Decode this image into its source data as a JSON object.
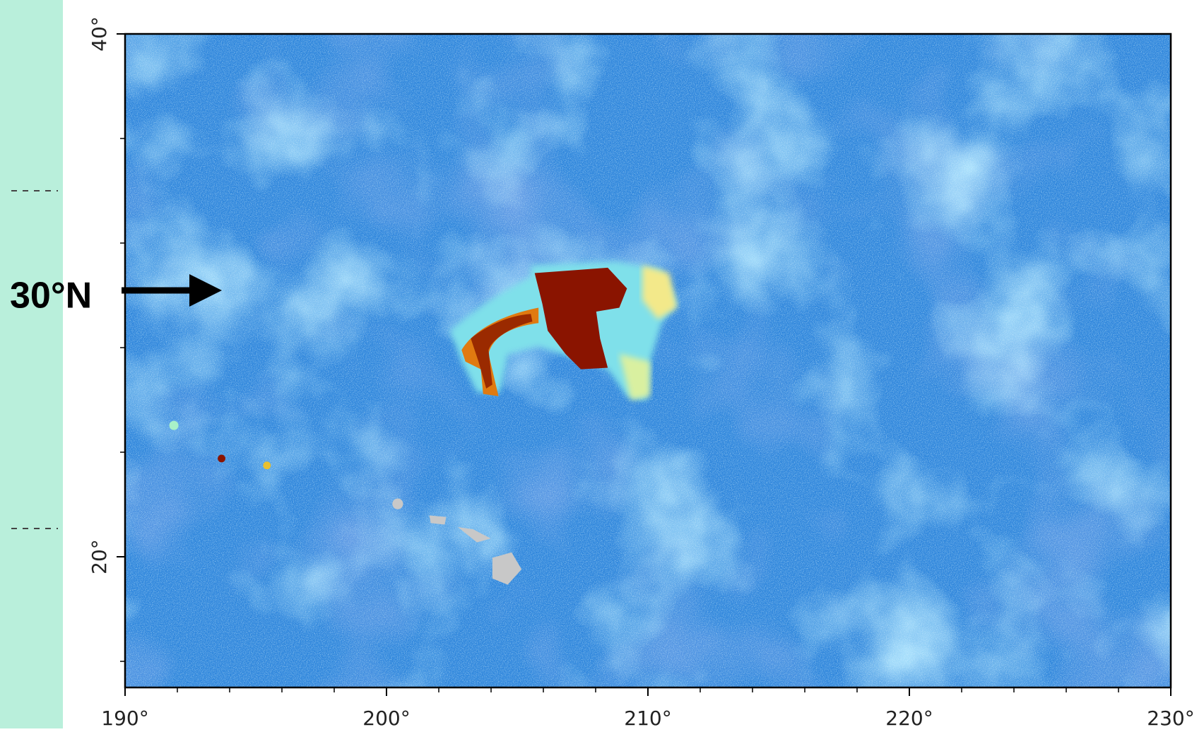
{
  "map": {
    "lon_range": [
      190,
      230
    ],
    "lat_range": [
      15,
      40
    ],
    "lon_ticks": [
      {
        "value": 190,
        "label": "190°"
      },
      {
        "value": 200,
        "label": "200°"
      },
      {
        "value": 210,
        "label": "210°"
      },
      {
        "value": 220,
        "label": "220°"
      },
      {
        "value": 230,
        "label": "230°"
      }
    ],
    "lon_minor_ticks": [
      192,
      194,
      196,
      198,
      202,
      204,
      206,
      208,
      212,
      214,
      216,
      218,
      222,
      224,
      226,
      228
    ],
    "lat_ticks": [
      {
        "value": 20,
        "label": "20°"
      },
      {
        "value": 40,
        "label": "40°"
      }
    ],
    "lat_minor_ticks": [
      16,
      24,
      28,
      32,
      36
    ],
    "annotation": {
      "text": "30°N",
      "lat": 30
    }
  }
}
